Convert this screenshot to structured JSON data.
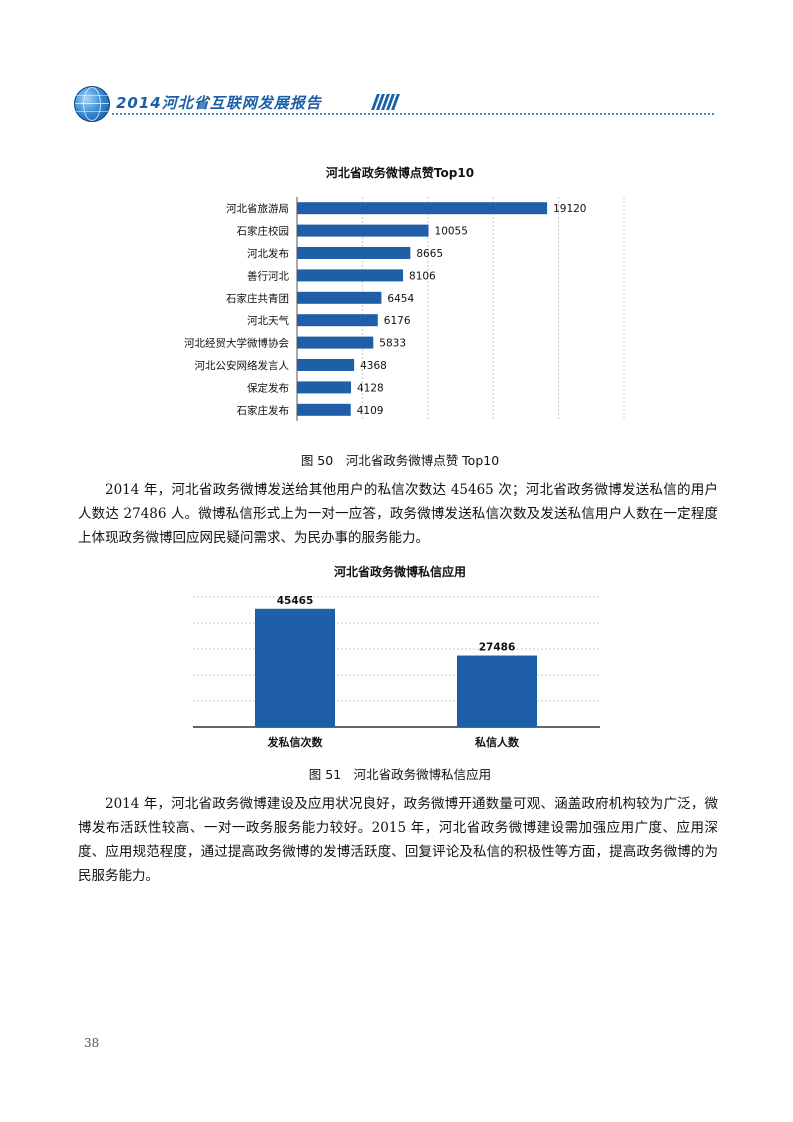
{
  "header": {
    "title": "2014河北省互联网发展报告"
  },
  "figure50": {
    "caption": "图 50　河北省政务微博点赞 Top10",
    "chart_data": {
      "type": "bar",
      "orientation": "horizontal",
      "title": "河北省政务微博点赞Top10",
      "categories": [
        "河北省旅游局",
        "石家庄校园",
        "河北发布",
        "善行河北",
        "石家庄共青团",
        "河北天气",
        "河北经贸大学微博协会",
        "河北公安网络发言人",
        "保定发布",
        "石家庄发布"
      ],
      "values": [
        19120,
        10055,
        8665,
        8106,
        6454,
        6176,
        5833,
        4368,
        4128,
        4109
      ],
      "xlim": [
        0,
        25000
      ],
      "grid": true,
      "color": "#1f5fa8"
    }
  },
  "paragraph1": "2014 年，河北省政务微博发送给其他用户的私信次数达 45465 次；河北省政务微博发送私信的用户人数达 27486 人。微博私信形式上为一对一应答，政务微博发送私信次数及发送私信用户人数在一定程度上体现政务微博回应网民疑问需求、为民办事的服务能力。",
  "figure51": {
    "caption": "图 51　河北省政务微博私信应用",
    "chart_data": {
      "type": "bar",
      "orientation": "vertical",
      "title": "河北省政务微博私信应用",
      "categories": [
        "发私信次数",
        "私信人数"
      ],
      "values": [
        45465,
        27486
      ],
      "ylim": [
        0,
        50000
      ],
      "grid": true,
      "color": "#1f5fa8"
    }
  },
  "paragraph2": "2014 年，河北省政务微博建设及应用状况良好，政务微博开通数量可观、涵盖政府机构较为广泛，微博发布活跃性较高、一对一政务服务能力较好。2015 年，河北省政务微博建设需加强应用广度、应用深度、应用规范程度，通过提高政务微博的发博活跃度、回复评论及私信的积极性等方面，提高政务微博的为民服务能力。",
  "page_number": "38"
}
